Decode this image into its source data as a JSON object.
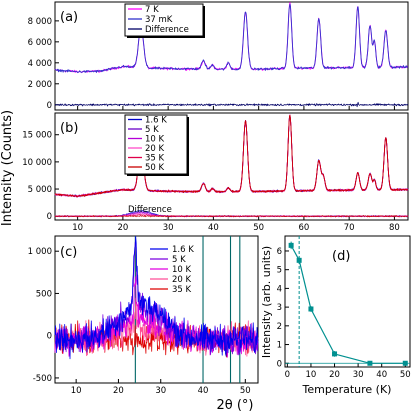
{
  "figure": {
    "ylabel_shared": "Intensity (Counts)",
    "xlabel_c": "2θ (°)"
  },
  "chart_data": [
    {
      "id": "a",
      "panel_label": "(a)",
      "type": "line",
      "xlim": [
        5,
        83
      ],
      "ylim": [
        -500,
        9800
      ],
      "y_ticks": [
        0,
        2000,
        4000,
        6000,
        8000
      ],
      "x_ticks": [
        10,
        20,
        30,
        40,
        50,
        60,
        70,
        80
      ],
      "x_tick_labels": false,
      "legend": {
        "placement": "top-left",
        "entries": [
          "7 K",
          "37 mK",
          "Difference"
        ]
      },
      "series": [
        {
          "name": "7 K",
          "color": "#ff00ff"
        },
        {
          "name": "37 mK",
          "color": "#3333cc"
        },
        {
          "name": "Difference",
          "color": "#000066"
        }
      ],
      "background": [
        [
          5,
          3300
        ],
        [
          10,
          3150
        ],
        [
          15,
          3200
        ],
        [
          20,
          3650
        ],
        [
          25,
          3500
        ],
        [
          30,
          3450
        ],
        [
          40,
          3400
        ],
        [
          50,
          3400
        ],
        [
          60,
          3500
        ],
        [
          70,
          3550
        ],
        [
          83,
          3600
        ]
      ],
      "peaks": [
        {
          "x": 24.0,
          "height": 3950,
          "width": 0.55
        },
        {
          "x": 37.8,
          "height": 800,
          "width": 0.4
        },
        {
          "x": 39.8,
          "height": 400,
          "width": 0.35
        },
        {
          "x": 43.3,
          "height": 600,
          "width": 0.35
        },
        {
          "x": 47.1,
          "height": 5500,
          "width": 0.45
        },
        {
          "x": 56.9,
          "height": 6200,
          "width": 0.4
        },
        {
          "x": 63.3,
          "height": 4700,
          "width": 0.4
        },
        {
          "x": 71.9,
          "height": 5800,
          "width": 0.38
        },
        {
          "x": 74.6,
          "height": 4000,
          "width": 0.38
        },
        {
          "x": 75.6,
          "height": 2400,
          "width": 0.3
        },
        {
          "x": 78.1,
          "height": 3500,
          "width": 0.4
        }
      ],
      "difference_offset": 0
    },
    {
      "id": "b",
      "panel_label": "(b)",
      "type": "line",
      "xlim": [
        5,
        83
      ],
      "ylim": [
        -700,
        19000
      ],
      "y_ticks": [
        0,
        5000,
        10000,
        15000
      ],
      "x_ticks": [
        10,
        20,
        30,
        40,
        50,
        60,
        70,
        80
      ],
      "x_tick_labels": true,
      "legend": {
        "placement": "top-left",
        "entries": [
          "1.6 K",
          "5 K",
          "10 K",
          "20 K",
          "35 K",
          "50 K"
        ]
      },
      "series": [
        {
          "name": "1.6 K",
          "color": "#0000cc"
        },
        {
          "name": "5 K",
          "color": "#6a00c8"
        },
        {
          "name": "10 K",
          "color": "#b400d8"
        },
        {
          "name": "20 K",
          "color": "#ff4fc8"
        },
        {
          "name": "35 K",
          "color": "#e0004a"
        },
        {
          "name": "50 K",
          "color": "#c80000"
        }
      ],
      "background": [
        [
          5,
          4000
        ],
        [
          10,
          3700
        ],
        [
          15,
          4300
        ],
        [
          20,
          4900
        ],
        [
          25,
          4700
        ],
        [
          30,
          4600
        ],
        [
          40,
          4500
        ],
        [
          50,
          4550
        ],
        [
          60,
          4700
        ],
        [
          70,
          4800
        ],
        [
          83,
          4900
        ]
      ],
      "peaks": [
        {
          "x": 24.0,
          "height": 8800,
          "width": 0.55
        },
        {
          "x": 37.8,
          "height": 1500,
          "width": 0.4
        },
        {
          "x": 39.8,
          "height": 600,
          "width": 0.35
        },
        {
          "x": 43.3,
          "height": 700,
          "width": 0.35
        },
        {
          "x": 47.1,
          "height": 13000,
          "width": 0.45
        },
        {
          "x": 56.9,
          "height": 14000,
          "width": 0.4
        },
        {
          "x": 63.3,
          "height": 5500,
          "width": 0.42
        },
        {
          "x": 64.3,
          "height": 2500,
          "width": 0.35
        },
        {
          "x": 71.9,
          "height": 3200,
          "width": 0.38
        },
        {
          "x": 74.6,
          "height": 3000,
          "width": 0.38
        },
        {
          "x": 75.6,
          "height": 1800,
          "width": 0.3
        },
        {
          "x": 78.1,
          "height": 9600,
          "width": 0.4
        }
      ],
      "difference_label": "Difference",
      "difference_bump": {
        "x": 24.0,
        "height": 1000,
        "width": 2.2
      }
    },
    {
      "id": "c",
      "panel_label": "(c)",
      "type": "line",
      "xlabel": "2θ (°)",
      "xlim": [
        5,
        53
      ],
      "ylim": [
        -560,
        1180
      ],
      "y_ticks": [
        -500,
        0,
        500,
        1000
      ],
      "x_ticks": [
        10,
        20,
        30,
        40,
        50
      ],
      "legend": {
        "placement": "top-right",
        "entries": [
          "1.6 K",
          "5 K",
          "10 K",
          "20 K",
          "35 K"
        ]
      },
      "series": [
        {
          "name": "1.6 K",
          "color": "#0000ee",
          "amp": 1.0
        },
        {
          "name": "5 K",
          "color": "#7a00e0",
          "amp": 0.9
        },
        {
          "name": "10 K",
          "color": "#e000e0",
          "amp": 0.55
        },
        {
          "name": "20 K",
          "color": "#ff4f96",
          "amp": 0.3
        },
        {
          "name": "35 K",
          "color": "#dd0000",
          "amp": 0.0
        }
      ],
      "hump": {
        "center": 25.5,
        "height": 430,
        "width": 5.0,
        "baseline": -120
      },
      "magnetic_peak": {
        "x": 24.0,
        "height": 820,
        "width": 0.35
      },
      "vlines": [
        {
          "x": 24.0,
          "color": "#006666"
        },
        {
          "x": 40.0,
          "color": "#006666"
        },
        {
          "x": 46.5,
          "color": "#006666"
        },
        {
          "x": 48.7,
          "color": "#006666"
        }
      ]
    },
    {
      "id": "d",
      "panel_label": "(d)",
      "type": "scatter",
      "xlabel": "Temperature (K)",
      "ylabel": "Intensity (arb. units)",
      "xlim": [
        -1,
        52
      ],
      "ylim": [
        -0.2,
        6.8
      ],
      "x_ticks": [
        0,
        10,
        20,
        30,
        40,
        50
      ],
      "y_ticks": [
        0,
        1,
        2,
        3,
        4,
        5,
        6
      ],
      "color": "#009090",
      "x": [
        1.6,
        5,
        10,
        20,
        35,
        50
      ],
      "y": [
        6.3,
        5.5,
        2.9,
        0.5,
        0.0,
        0.0
      ],
      "yerr": [
        0.2,
        0.15,
        0.15,
        0.15,
        0.05,
        0.05
      ],
      "vline_dashed": 5
    }
  ]
}
